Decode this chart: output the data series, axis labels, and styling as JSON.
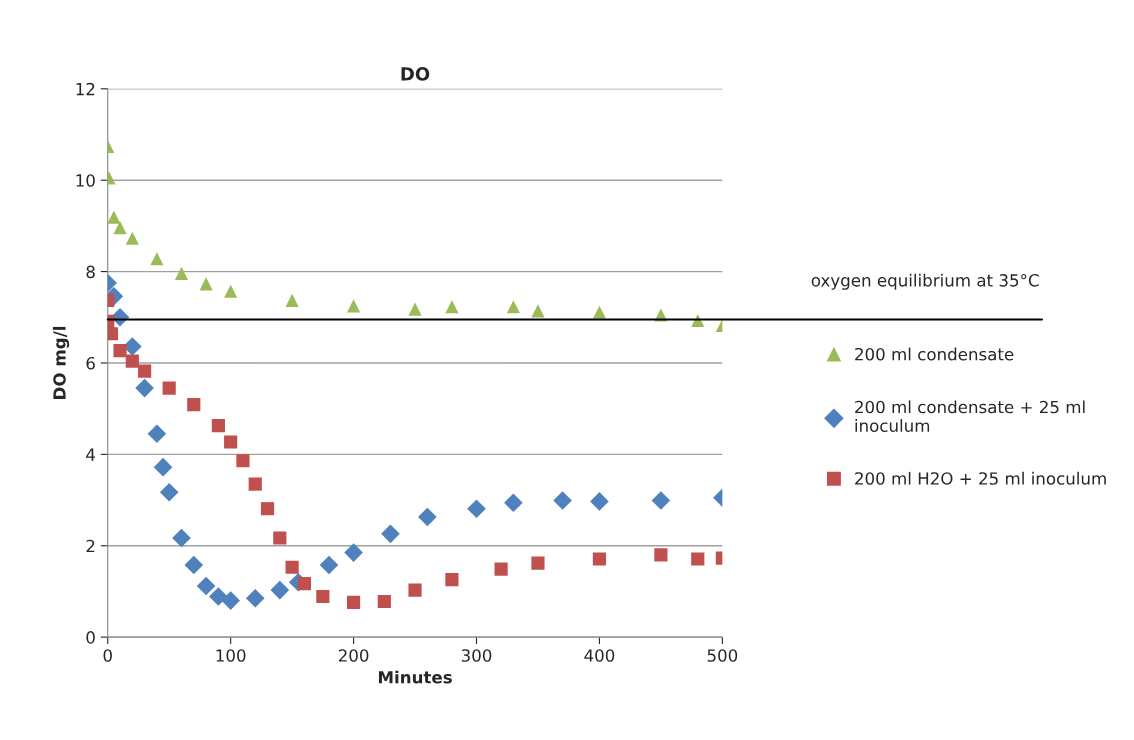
{
  "chart_data": {
    "type": "scatter",
    "title": "DO",
    "xlabel": "Minutes",
    "ylabel": "DO mg/l",
    "xlim": [
      0,
      500
    ],
    "xticks": [
      0,
      100,
      200,
      300,
      400,
      500
    ],
    "ylim": [
      0,
      12
    ],
    "yticks": [
      0,
      2,
      4,
      6,
      8,
      10,
      12
    ],
    "grid": "y",
    "legend": "right",
    "ref_lines": [
      {
        "axis": "y",
        "value": 6.95,
        "label": "oxygen equilibrium at 35°C",
        "color": "#000000"
      }
    ],
    "series": [
      {
        "name": "200 ml condensate",
        "color": "#9bbb59",
        "marker": "triangle",
        "x": [
          0,
          1,
          5,
          10,
          20,
          40,
          60,
          80,
          100,
          150,
          200,
          250,
          280,
          330,
          350,
          400,
          450,
          480,
          500
        ],
        "values": [
          10.74,
          10.05,
          9.19,
          8.96,
          8.73,
          8.28,
          7.96,
          7.73,
          7.57,
          7.37,
          7.25,
          7.18,
          7.23,
          7.23,
          7.14,
          7.11,
          7.05,
          6.93,
          6.82
        ]
      },
      {
        "name": "200 ml condensate + 25 ml inoculum",
        "color": "#4f81bd",
        "marker": "diamond",
        "x": [
          0,
          5,
          10,
          20,
          30,
          40,
          45,
          50,
          60,
          70,
          80,
          90,
          100,
          120,
          140,
          155,
          180,
          200,
          230,
          260,
          300,
          330,
          370,
          400,
          450,
          500
        ],
        "values": [
          7.75,
          7.46,
          7.0,
          6.36,
          5.45,
          4.45,
          3.72,
          3.17,
          2.17,
          1.58,
          1.12,
          0.89,
          0.8,
          0.85,
          1.03,
          1.2,
          1.58,
          1.85,
          2.26,
          2.63,
          2.81,
          2.94,
          2.99,
          2.97,
          2.99,
          3.05
        ]
      },
      {
        "name": "200 ml H2O + 25 ml inoculum",
        "color": "#c0504d",
        "marker": "square",
        "x": [
          0,
          0,
          3,
          10,
          20,
          30,
          50,
          70,
          90,
          100,
          110,
          120,
          130,
          140,
          150,
          160,
          175,
          200,
          225,
          250,
          280,
          320,
          350,
          400,
          450,
          480,
          500
        ],
        "values": [
          7.37,
          6.91,
          6.64,
          6.27,
          6.04,
          5.82,
          5.45,
          5.09,
          4.63,
          4.27,
          3.86,
          3.35,
          2.81,
          2.17,
          1.53,
          1.17,
          0.89,
          0.76,
          0.78,
          1.03,
          1.26,
          1.49,
          1.62,
          1.71,
          1.8,
          1.71,
          1.73
        ]
      }
    ]
  }
}
